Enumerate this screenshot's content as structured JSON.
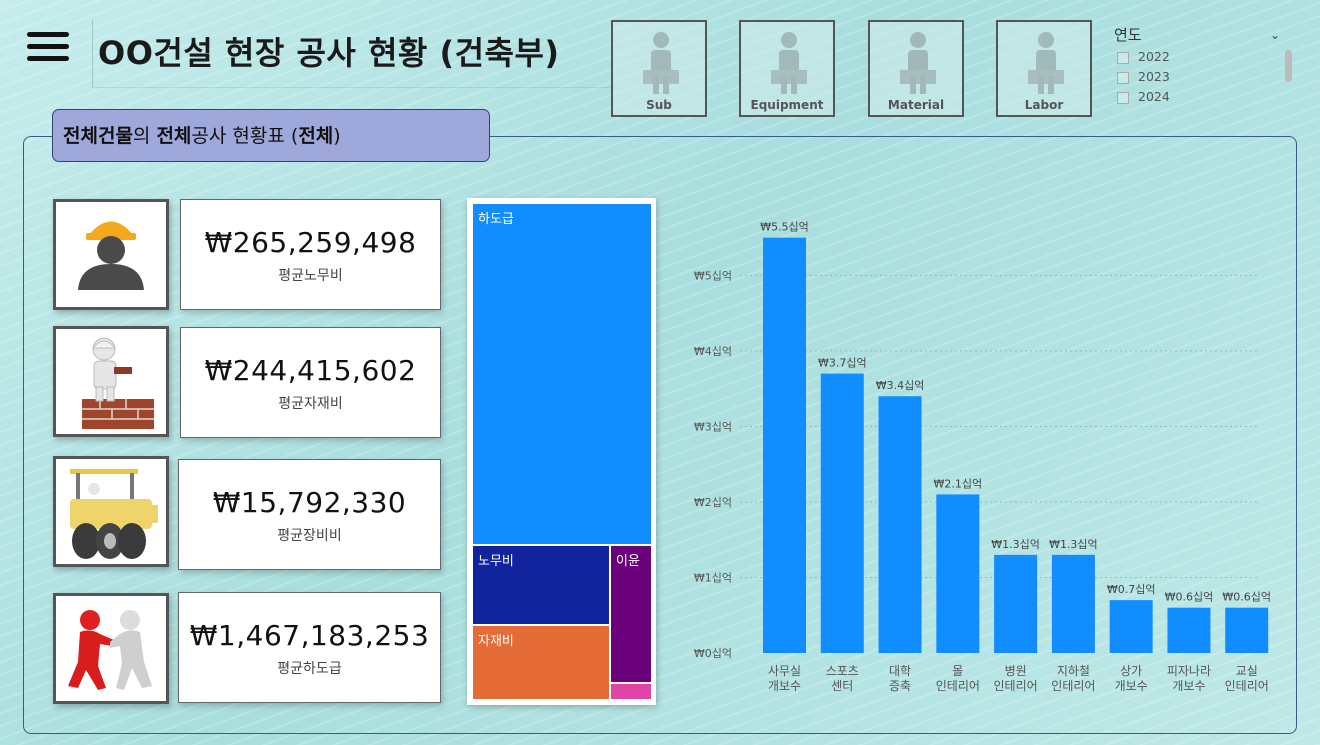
{
  "header": {
    "title": "OO건설 현장 공사 현황 (건축부)",
    "nav_buttons": [
      {
        "label": "Sub"
      },
      {
        "label": "Equipment"
      },
      {
        "label": "Material"
      },
      {
        "label": "Labor"
      }
    ]
  },
  "year_slicer": {
    "label": "연도",
    "options": [
      "2022",
      "2023",
      "2024"
    ]
  },
  "subtitle": {
    "part1": "전체건물",
    "part2": "의 ",
    "part3": "전체",
    "part4": "공사 현황표 (",
    "part5": "전체",
    "part6": ")"
  },
  "kpis": [
    {
      "value": "₩265,259,498",
      "label": "평균노무비",
      "icon": "worker-icon"
    },
    {
      "value": "₩244,415,602",
      "label": "평균자재비",
      "icon": "bricklayer-icon"
    },
    {
      "value": "₩15,792,330",
      "label": "평균장비비",
      "icon": "road-roller-icon"
    },
    {
      "value": "₩1,467,183,253",
      "label": "평균하도급",
      "icon": "partners-icon"
    }
  ],
  "treemap": [
    {
      "label": "하도급",
      "color": "#118dff"
    },
    {
      "label": "노무비",
      "color": "#12239e"
    },
    {
      "label": "이윤",
      "color": "#6b007b"
    },
    {
      "label": "자재비",
      "color": "#e66c37"
    },
    {
      "label": "",
      "color": "#e044a7"
    }
  ],
  "chart_data": {
    "type": "bar",
    "categories": [
      [
        "사무실",
        "개보수"
      ],
      [
        "스포츠",
        "센터"
      ],
      [
        "대학",
        "증축"
      ],
      [
        "몰",
        "인테리어"
      ],
      [
        "병원",
        "인테리어"
      ],
      [
        "지하철",
        "인테리어"
      ],
      [
        "상가",
        "개보수"
      ],
      [
        "피자나라",
        "개보수"
      ],
      [
        "교실",
        "인테리어"
      ]
    ],
    "values": [
      5.5,
      3.7,
      3.4,
      2.1,
      1.3,
      1.3,
      0.7,
      0.6,
      0.6
    ],
    "data_labels": [
      "₩5.5십억",
      "₩3.7십억",
      "₩3.4십억",
      "₩2.1십억",
      "₩1.3십억",
      "₩1.3십억",
      "₩0.7십억",
      "₩0.6십억",
      "₩0.6십억"
    ],
    "y_ticks": [
      "₩0십억",
      "₩1십억",
      "₩2십억",
      "₩3십억",
      "₩4십억",
      "₩5십억"
    ],
    "ylim": [
      0,
      5.8
    ],
    "bar_color": "#118dff",
    "grid": true
  }
}
